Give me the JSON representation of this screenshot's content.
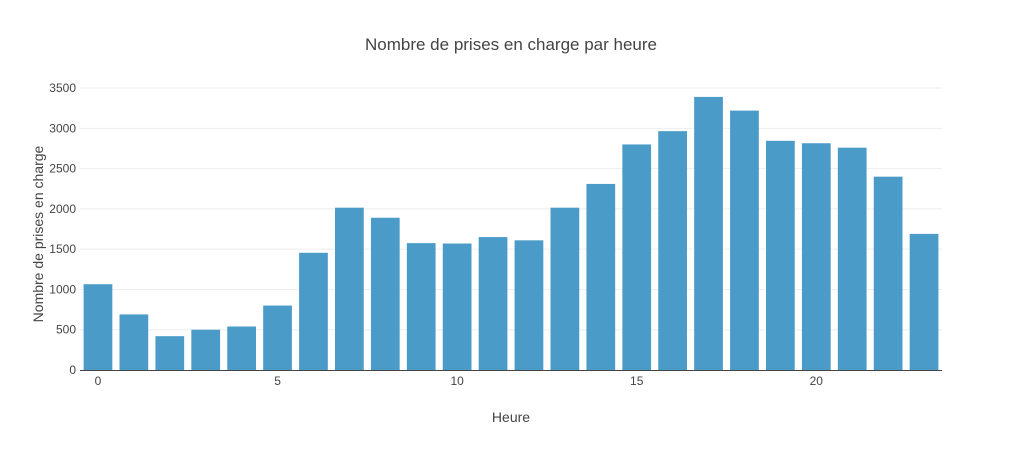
{
  "chart_data": {
    "type": "bar",
    "title": "Nombre de prises en charge par heure",
    "xlabel": "Heure",
    "ylabel": "Nombre de prises en charge",
    "x": [
      0,
      1,
      2,
      3,
      4,
      5,
      6,
      7,
      8,
      9,
      10,
      11,
      12,
      13,
      14,
      15,
      16,
      17,
      18,
      19,
      20,
      21,
      22,
      23
    ],
    "values": [
      1065,
      690,
      420,
      500,
      540,
      800,
      1455,
      2015,
      1890,
      1575,
      1570,
      1650,
      1610,
      2015,
      2310,
      2800,
      2965,
      3390,
      3220,
      2845,
      2815,
      2760,
      2400,
      1690
    ],
    "x_ticks": [
      "0",
      "5",
      "10",
      "15",
      "20"
    ],
    "y_ticks": [
      "0",
      "500",
      "1000",
      "1500",
      "2000",
      "2500",
      "3000",
      "3500"
    ],
    "ylim": [
      0,
      3600
    ],
    "grid": true,
    "legend": false,
    "bar_color": "#4b9bc8"
  }
}
